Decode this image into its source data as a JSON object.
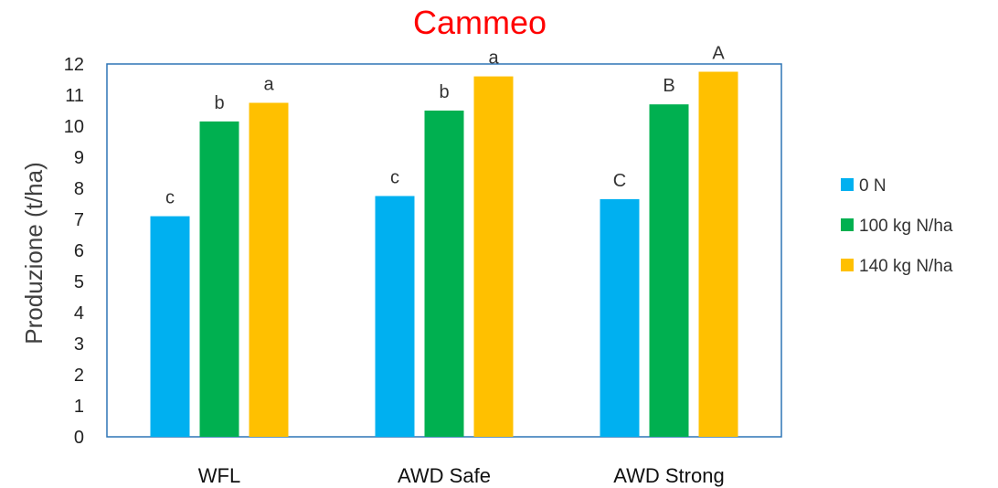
{
  "chart_data": {
    "type": "bar",
    "title": "Cammeo",
    "xlabel": "",
    "ylabel": "Produzione (t/ha)",
    "ylim": [
      0,
      12
    ],
    "yticks": [
      0,
      1,
      2,
      3,
      4,
      5,
      6,
      7,
      8,
      9,
      10,
      11,
      12
    ],
    "categories": [
      "WFL",
      "AWD Safe",
      "AWD Strong"
    ],
    "series": [
      {
        "name": "0 N",
        "color": "#00b0f0",
        "values": [
          7.1,
          7.75,
          7.65
        ],
        "labels": [
          "c",
          "c",
          "C"
        ]
      },
      {
        "name": "100 kg N/ha",
        "color": "#00b050",
        "values": [
          10.15,
          10.5,
          10.7
        ],
        "labels": [
          "b",
          "b",
          "B"
        ]
      },
      {
        "name": "140 kg N/ha",
        "color": "#ffc000",
        "values": [
          10.75,
          11.6,
          11.75
        ],
        "labels": [
          "a",
          "a",
          "A"
        ]
      }
    ],
    "legend_position": "right",
    "frame_color": "#2e75b6",
    "grid": false
  }
}
